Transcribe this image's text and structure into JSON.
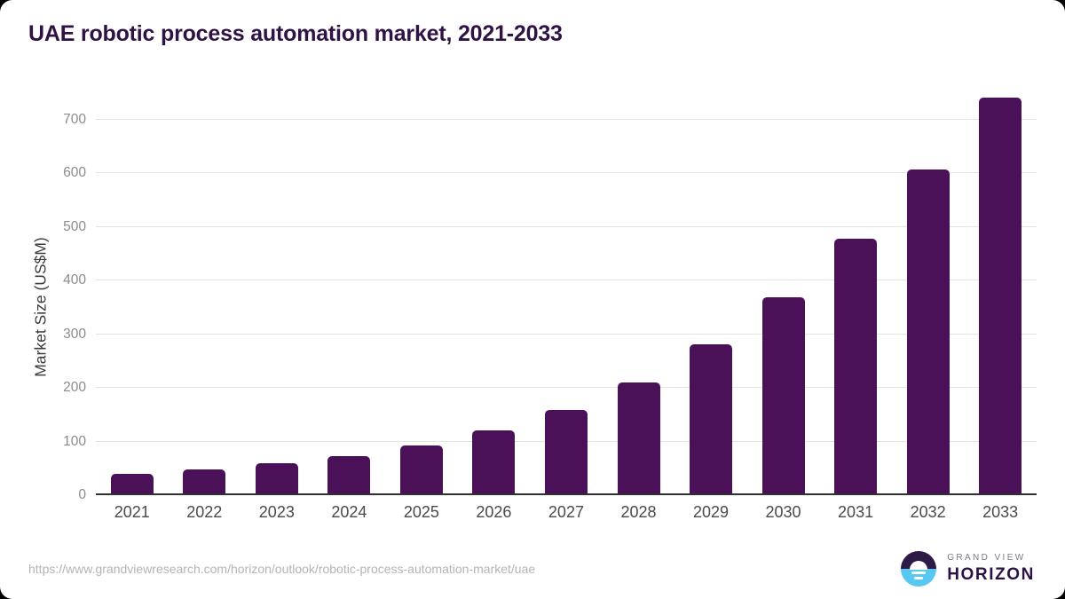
{
  "title": "UAE robotic process automation market, 2021-2033",
  "chart_data": {
    "type": "bar",
    "categories": [
      "2021",
      "2022",
      "2023",
      "2024",
      "2025",
      "2026",
      "2027",
      "2028",
      "2029",
      "2030",
      "2031",
      "2032",
      "2033"
    ],
    "values": [
      36,
      44,
      56,
      70,
      90,
      117,
      155,
      207,
      277,
      365,
      474,
      603,
      737
    ],
    "title": "UAE robotic process automation market, 2021-2033",
    "xlabel": "",
    "ylabel": "Market Size (US$M)",
    "ylim": [
      0,
      760
    ],
    "yticks": [
      0,
      100,
      200,
      300,
      400,
      500,
      600,
      700
    ],
    "grid": true,
    "legend": "none",
    "bar_color": "#4a1158"
  },
  "footer": {
    "source_url": "https://www.grandviewresearch.com/horizon/outlook/robotic-process-automation-market/uae",
    "logo": {
      "line1": "GRAND VIEW",
      "line2": "HORIZON"
    }
  },
  "colors": {
    "title_text": "#301345",
    "bar": "#4a1158",
    "gridline": "#e4e4e4",
    "axis_line": "#2f2f2f",
    "tick_text": "#8c8c8c",
    "x_label_text": "#4a4a4a",
    "url_text": "#b5b3b6",
    "logo_purple": "#2e1a47",
    "logo_blue": "#58c7f1"
  }
}
